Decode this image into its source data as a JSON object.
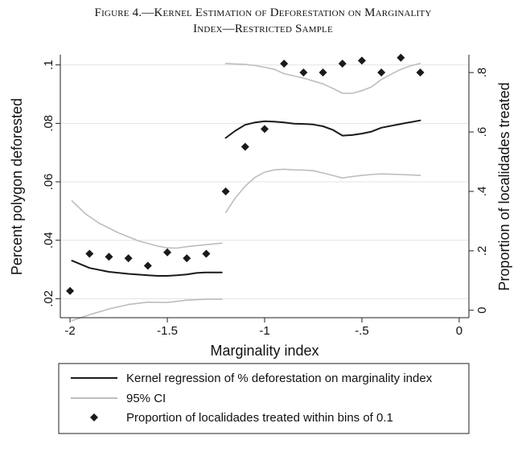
{
  "figure": {
    "title_line1": "Figure 4.—Kernel Estimation of Deforestation on Marginality",
    "title_line2": "Index—Restricted Sample"
  },
  "chart_data": {
    "type": "line",
    "xlabel": "Marginality index",
    "ylabel_left": "Percent polygon deforested",
    "ylabel_right": "Proportion of localidades treated",
    "xlim": [
      -2.05,
      0.05
    ],
    "ylim_left": [
      0.0135,
      0.1035
    ],
    "ylim_right": [
      -0.025,
      0.86
    ],
    "x_ticks": [
      -2,
      -1.5,
      -1,
      -0.5,
      0
    ],
    "x_tick_labels": [
      "-2",
      "-1.5",
      "-1",
      "-.5",
      "0"
    ],
    "y_left_ticks": [
      0.02,
      0.04,
      0.06,
      0.08,
      0.1
    ],
    "y_left_tick_labels": [
      ".02",
      ".04",
      ".06",
      ".08",
      ".1"
    ],
    "y_right_ticks": [
      0,
      0.2,
      0.4,
      0.6,
      0.8
    ],
    "y_right_tick_labels": [
      "0",
      ".2",
      ".4",
      ".6",
      ".8"
    ],
    "grid": true,
    "legend_position": "bottom",
    "colors": {
      "kernel": "#1a1a1a",
      "ci": "#bdbdbd",
      "points": "#1a1a1a",
      "grid": "#e3e3e3"
    },
    "series": [
      {
        "name": "Kernel regression of % deforestation on marginality index",
        "axis": "left",
        "style": "line",
        "segments": [
          {
            "x": [
              -1.99,
              -1.9,
              -1.8,
              -1.7,
              -1.6,
              -1.55,
              -1.5,
              -1.45,
              -1.4,
              -1.35,
              -1.3,
              -1.22
            ],
            "y": [
              0.033,
              0.0305,
              0.0292,
              0.0285,
              0.028,
              0.0278,
              0.0278,
              0.028,
              0.0283,
              0.0288,
              0.029,
              0.029
            ]
          },
          {
            "x": [
              -1.2,
              -1.15,
              -1.1,
              -1.05,
              -1.0,
              -0.95,
              -0.9,
              -0.85,
              -0.8,
              -0.75,
              -0.7,
              -0.65,
              -0.6,
              -0.55,
              -0.5,
              -0.45,
              -0.4,
              -0.3,
              -0.2
            ],
            "y": [
              0.075,
              0.0775,
              0.0795,
              0.0803,
              0.0807,
              0.0806,
              0.0803,
              0.0799,
              0.0798,
              0.0796,
              0.079,
              0.0778,
              0.0758,
              0.076,
              0.0765,
              0.0772,
              0.0785,
              0.0798,
              0.081
            ]
          }
        ]
      },
      {
        "name": "95% CI",
        "axis": "left",
        "style": "line",
        "segments": [
          {
            "x": [
              -1.99,
              -1.92,
              -1.85,
              -1.75,
              -1.65,
              -1.55,
              -1.5,
              -1.45,
              -1.4,
              -1.3,
              -1.22
            ],
            "y": [
              0.0535,
              0.049,
              0.0458,
              0.0425,
              0.0398,
              0.038,
              0.0374,
              0.0373,
              0.0378,
              0.0385,
              0.039
            ]
          },
          {
            "x": [
              -1.99,
              -1.9,
              -1.8,
              -1.7,
              -1.6,
              -1.5,
              -1.4,
              -1.3,
              -1.22
            ],
            "y": [
              0.0125,
              0.0145,
              0.0165,
              0.018,
              0.0188,
              0.0187,
              0.0195,
              0.0198,
              0.0198
            ]
          },
          {
            "x": [
              -1.2,
              -1.15,
              -1.1,
              -1.05,
              -1.0,
              -0.95,
              -0.9,
              -0.8,
              -0.7,
              -0.65,
              -0.6,
              -0.55,
              -0.5,
              -0.45,
              -0.4,
              -0.35,
              -0.3,
              -0.25,
              -0.2
            ],
            "y": [
              0.1005,
              0.1003,
              0.1002,
              0.0998,
              0.0992,
              0.0985,
              0.097,
              0.0955,
              0.0935,
              0.092,
              0.0903,
              0.0903,
              0.0912,
              0.0925,
              0.095,
              0.0968,
              0.0985,
              0.0997,
              0.1005
            ]
          },
          {
            "x": [
              -1.2,
              -1.15,
              -1.1,
              -1.05,
              -1.0,
              -0.95,
              -0.9,
              -0.85,
              -0.8,
              -0.75,
              -0.7,
              -0.65,
              -0.6,
              -0.55,
              -0.5,
              -0.45,
              -0.4,
              -0.3,
              -0.2
            ],
            "y": [
              0.0495,
              0.0545,
              0.0585,
              0.0615,
              0.0633,
              0.0641,
              0.0643,
              0.0641,
              0.064,
              0.0638,
              0.063,
              0.0622,
              0.0613,
              0.0618,
              0.0622,
              0.0625,
              0.0627,
              0.0625,
              0.0622
            ]
          }
        ]
      },
      {
        "name": "Proportion of localidades treated within bins of 0.1",
        "axis": "right",
        "style": "marker",
        "x": [
          -2.0,
          -1.9,
          -1.8,
          -1.7,
          -1.6,
          -1.5,
          -1.4,
          -1.3,
          -1.2,
          -1.1,
          -1.0,
          -0.9,
          -0.8,
          -0.7,
          -0.6,
          -0.5,
          -0.4,
          -0.3,
          -0.2
        ],
        "y": [
          0.065,
          0.19,
          0.18,
          0.175,
          0.15,
          0.195,
          0.175,
          0.19,
          0.4,
          0.55,
          0.61,
          0.83,
          0.8,
          0.8,
          0.83,
          0.84,
          0.8,
          0.85,
          0.8
        ]
      }
    ]
  }
}
